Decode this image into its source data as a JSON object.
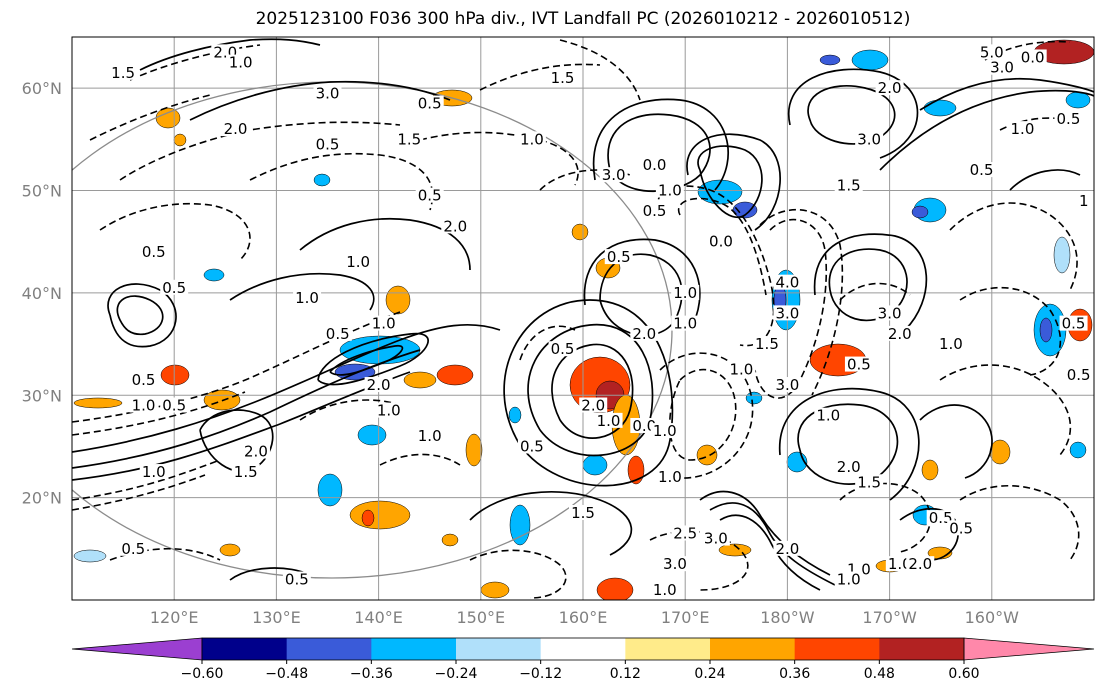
{
  "title": "2025123100 F036 300 hPa div., IVT Landfall PC (2026010212 - 2026010512)",
  "map": {
    "lon_range": [
      110,
      210
    ],
    "lat_range": [
      10,
      65
    ],
    "lat_ticks": [
      {
        "value": 20,
        "label": "20°N"
      },
      {
        "value": 30,
        "label": "30°N"
      },
      {
        "value": 40,
        "label": "40°N"
      },
      {
        "value": 50,
        "label": "50°N"
      },
      {
        "value": 60,
        "label": "60°N"
      }
    ],
    "lon_ticks": [
      {
        "value": 120,
        "label": "120°E"
      },
      {
        "value": 130,
        "label": "130°E"
      },
      {
        "value": 140,
        "label": "140°E"
      },
      {
        "value": 150,
        "label": "150°E"
      },
      {
        "value": 160,
        "label": "160°E"
      },
      {
        "value": 170,
        "label": "170°E"
      },
      {
        "value": 180,
        "label": "180°W"
      },
      {
        "value": 190,
        "label": "170°W"
      },
      {
        "value": 200,
        "label": "160°W"
      }
    ],
    "contour_labels": [
      {
        "lon": 125,
        "lat": 63.5,
        "text": "2.0"
      },
      {
        "lon": 126.5,
        "lat": 62.5,
        "text": "1.0"
      },
      {
        "lon": 115,
        "lat": 61.5,
        "text": "1.5"
      },
      {
        "lon": 135,
        "lat": 59.5,
        "text": "3.0"
      },
      {
        "lon": 145,
        "lat": 58.5,
        "text": "0.5"
      },
      {
        "lon": 158,
        "lat": 61,
        "text": "1.5"
      },
      {
        "lon": 126,
        "lat": 56,
        "text": "2.0"
      },
      {
        "lon": 135,
        "lat": 54.5,
        "text": "0.5"
      },
      {
        "lon": 143,
        "lat": 55,
        "text": "1.5"
      },
      {
        "lon": 155,
        "lat": 55,
        "text": "1.0"
      },
      {
        "lon": 145,
        "lat": 49.5,
        "text": "0.5"
      },
      {
        "lon": 147.5,
        "lat": 46.5,
        "text": "2.0"
      },
      {
        "lon": 118,
        "lat": 44,
        "text": "0.5"
      },
      {
        "lon": 120,
        "lat": 40.5,
        "text": "0.5"
      },
      {
        "lon": 138,
        "lat": 43,
        "text": "1.0"
      },
      {
        "lon": 133,
        "lat": 39.5,
        "text": "1.0"
      },
      {
        "lon": 136,
        "lat": 36,
        "text": "0.5"
      },
      {
        "lon": 140.5,
        "lat": 37,
        "text": "1.0"
      },
      {
        "lon": 140,
        "lat": 31,
        "text": "2.0"
      },
      {
        "lon": 117,
        "lat": 31.5,
        "text": "0.5"
      },
      {
        "lon": 117,
        "lat": 29,
        "text": "1.0"
      },
      {
        "lon": 120,
        "lat": 29,
        "text": "0.5"
      },
      {
        "lon": 141,
        "lat": 28.5,
        "text": "1.0"
      },
      {
        "lon": 145,
        "lat": 26,
        "text": "1.0"
      },
      {
        "lon": 127,
        "lat": 22.5,
        "text": "1.5"
      },
      {
        "lon": 128,
        "lat": 24.5,
        "text": "2.0"
      },
      {
        "lon": 118,
        "lat": 22.5,
        "text": "1.0"
      },
      {
        "lon": 116,
        "lat": 15,
        "text": "0.5"
      },
      {
        "lon": 132,
        "lat": 12,
        "text": "0.5"
      },
      {
        "lon": 163,
        "lat": 51.5,
        "text": "3.0"
      },
      {
        "lon": 167,
        "lat": 52.5,
        "text": "0.0"
      },
      {
        "lon": 167,
        "lat": 48,
        "text": "0.5"
      },
      {
        "lon": 168.5,
        "lat": 50,
        "text": "1.0"
      },
      {
        "lon": 163.5,
        "lat": 43.5,
        "text": "0.5"
      },
      {
        "lon": 170,
        "lat": 40,
        "text": "1.0"
      },
      {
        "lon": 166,
        "lat": 36,
        "text": "2.0"
      },
      {
        "lon": 170,
        "lat": 37,
        "text": "1.0"
      },
      {
        "lon": 158,
        "lat": 34.5,
        "text": "0.5"
      },
      {
        "lon": 161,
        "lat": 29,
        "text": "2.0"
      },
      {
        "lon": 166,
        "lat": 27,
        "text": "0.0"
      },
      {
        "lon": 155,
        "lat": 25,
        "text": "0.5"
      },
      {
        "lon": 160,
        "lat": 18.5,
        "text": "1.5"
      },
      {
        "lon": 170,
        "lat": 16.5,
        "text": "2.5"
      },
      {
        "lon": 173,
        "lat": 16,
        "text": "3.0"
      },
      {
        "lon": 169,
        "lat": 13.5,
        "text": "3.0"
      },
      {
        "lon": 168,
        "lat": 26.5,
        "text": "1.0"
      },
      {
        "lon": 168,
        "lat": 11,
        "text": "1.0"
      },
      {
        "lon": 173.5,
        "lat": 45,
        "text": "0.0"
      },
      {
        "lon": 180,
        "lat": 41,
        "text": "4.0"
      },
      {
        "lon": 180,
        "lat": 38,
        "text": "3.0"
      },
      {
        "lon": 178,
        "lat": 35,
        "text": "1.5"
      },
      {
        "lon": 180,
        "lat": 31,
        "text": "3.0"
      },
      {
        "lon": 184,
        "lat": 28,
        "text": "1.0"
      },
      {
        "lon": 186,
        "lat": 23,
        "text": "2.0"
      },
      {
        "lon": 188,
        "lat": 21.5,
        "text": "1.5"
      },
      {
        "lon": 180,
        "lat": 15,
        "text": "2.0"
      },
      {
        "lon": 187,
        "lat": 13,
        "text": "1.0"
      },
      {
        "lon": 186,
        "lat": 12,
        "text": "1.0"
      },
      {
        "lon": 191,
        "lat": 13.5,
        "text": "1.0"
      },
      {
        "lon": 193,
        "lat": 13.5,
        "text": "2.0"
      },
      {
        "lon": 195,
        "lat": 18,
        "text": "0.5"
      },
      {
        "lon": 197,
        "lat": 17,
        "text": "0.5"
      },
      {
        "lon": 187,
        "lat": 33,
        "text": "0.5"
      },
      {
        "lon": 190,
        "lat": 38,
        "text": "3.0"
      },
      {
        "lon": 191,
        "lat": 36,
        "text": "2.0"
      },
      {
        "lon": 196,
        "lat": 35,
        "text": "1.0"
      },
      {
        "lon": 188,
        "lat": 55,
        "text": "3.0"
      },
      {
        "lon": 190,
        "lat": 60,
        "text": "2.0"
      },
      {
        "lon": 186,
        "lat": 50.5,
        "text": "1.5"
      },
      {
        "lon": 200,
        "lat": 63.5,
        "text": "5.0"
      },
      {
        "lon": 201,
        "lat": 62,
        "text": "3.0"
      },
      {
        "lon": 203,
        "lat": 56,
        "text": "1.0"
      },
      {
        "lon": 199,
        "lat": 52,
        "text": "0.5"
      },
      {
        "lon": 207.5,
        "lat": 57,
        "text": "0.5"
      },
      {
        "lon": 209,
        "lat": 49,
        "text": "1"
      },
      {
        "lon": 208,
        "lat": 37,
        "text": "0.5"
      },
      {
        "lon": 208.5,
        "lat": 32,
        "text": "0.5"
      },
      {
        "lon": 204,
        "lat": 63,
        "text": "0.0"
      },
      {
        "lon": 175.5,
        "lat": 32.5,
        "text": "1.0"
      },
      {
        "lon": 168.5,
        "lat": 22,
        "text": "1.0"
      },
      {
        "lon": 162.5,
        "lat": 27.5,
        "text": "1.0"
      }
    ]
  },
  "colorbar": {
    "tick_labels": [
      "−0.60",
      "−0.48",
      "−0.36",
      "−0.24",
      "−0.12",
      "0.12",
      "0.24",
      "0.36",
      "0.48",
      "0.60"
    ],
    "levels": [
      -0.6,
      -0.48,
      -0.36,
      -0.24,
      -0.12,
      0.12,
      0.24,
      0.36,
      0.48,
      0.6
    ],
    "colors": [
      "#9b3fd1",
      "#00008b",
      "#3a5bd9",
      "#00b8ff",
      "#b0e0fa",
      "#ffffff",
      "#ffeb8a",
      "#ffa500",
      "#ff4500",
      "#b22222",
      "#ff88aa"
    ],
    "extend": "both"
  }
}
